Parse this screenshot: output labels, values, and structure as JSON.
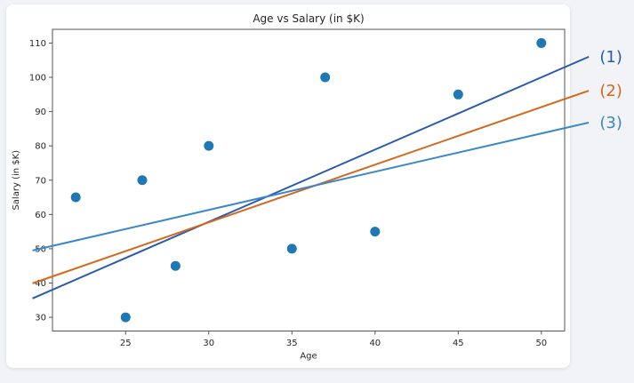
{
  "figure": {
    "page_background": "#f1f3f6",
    "card_background": "#ffffff"
  },
  "chart_data": {
    "type": "scatter",
    "title": "Age vs Salary (in $K)",
    "xlabel": "Age",
    "ylabel": "Salary (in $K)",
    "xlim": [
      20.6,
      51.4
    ],
    "ylim": [
      26,
      114
    ],
    "xticks": [
      25,
      30,
      35,
      40,
      45,
      50
    ],
    "yticks": [
      30,
      40,
      50,
      60,
      70,
      80,
      90,
      100,
      110
    ],
    "grid": false,
    "legend_position": "outside-right-labels",
    "axis_color": "#555555",
    "text_color": "#262626",
    "scatter": {
      "name": "data-points",
      "color": "#1f77b4",
      "x": [
        22,
        25,
        26,
        28,
        30,
        35,
        37,
        40,
        45,
        50
      ],
      "y": [
        65,
        30,
        70,
        45,
        80,
        50,
        100,
        55,
        95,
        110
      ]
    },
    "lines": [
      {
        "label": "(1)",
        "color": "#2a5caa",
        "x": [
          19.4,
          52.85
        ],
        "y": [
          35.5,
          106.0
        ]
      },
      {
        "label": "(2)",
        "color": "#d2691e",
        "x": [
          19.4,
          52.85
        ],
        "y": [
          39.9,
          96.1
        ]
      },
      {
        "label": "(3)",
        "color": "#3b87c8",
        "x": [
          19.4,
          52.85
        ],
        "y": [
          49.5,
          86.8
        ]
      }
    ]
  }
}
